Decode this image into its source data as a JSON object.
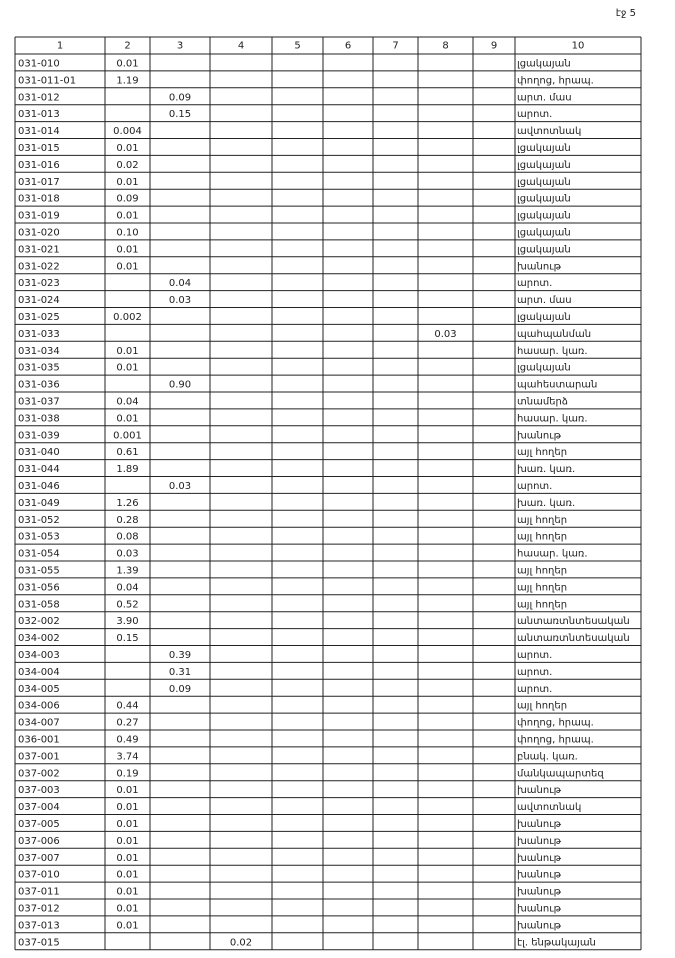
{
  "page_label": "էջ 5",
  "table": {
    "columns": [
      "1",
      "2",
      "3",
      "4",
      "5",
      "6",
      "7",
      "8",
      "9",
      "10"
    ],
    "rows": [
      [
        "031-010",
        "0.01",
        null,
        null,
        null,
        null,
        null,
        null,
        null,
        "լցակայան"
      ],
      [
        "031-011-01",
        "1.19",
        null,
        null,
        null,
        null,
        null,
        null,
        null,
        "փողոց, հրապ."
      ],
      [
        "031-012",
        null,
        "0.09",
        null,
        null,
        null,
        null,
        null,
        null,
        "արտ. մաս"
      ],
      [
        "031-013",
        null,
        "0.15",
        null,
        null,
        null,
        null,
        null,
        null,
        "արոտ."
      ],
      [
        "031-014",
        "0.004",
        null,
        null,
        null,
        null,
        null,
        null,
        null,
        "ավտոտնակ"
      ],
      [
        "031-015",
        "0.01",
        null,
        null,
        null,
        null,
        null,
        null,
        null,
        "լցակայան"
      ],
      [
        "031-016",
        "0.02",
        null,
        null,
        null,
        null,
        null,
        null,
        null,
        "լցակայան"
      ],
      [
        "031-017",
        "0.01",
        null,
        null,
        null,
        null,
        null,
        null,
        null,
        "լցակայան"
      ],
      [
        "031-018",
        "0.09",
        null,
        null,
        null,
        null,
        null,
        null,
        null,
        "լցակայան"
      ],
      [
        "031-019",
        "0.01",
        null,
        null,
        null,
        null,
        null,
        null,
        null,
        "լցակայան"
      ],
      [
        "031-020",
        "0.10",
        null,
        null,
        null,
        null,
        null,
        null,
        null,
        "լցակայան"
      ],
      [
        "031-021",
        "0.01",
        null,
        null,
        null,
        null,
        null,
        null,
        null,
        "լցակայան"
      ],
      [
        "031-022",
        "0.01",
        null,
        null,
        null,
        null,
        null,
        null,
        null,
        "խանութ"
      ],
      [
        "031-023",
        null,
        "0.04",
        null,
        null,
        null,
        null,
        null,
        null,
        "արոտ."
      ],
      [
        "031-024",
        null,
        "0.03",
        null,
        null,
        null,
        null,
        null,
        null,
        "արտ. մաս"
      ],
      [
        "031-025",
        "0.002",
        null,
        null,
        null,
        null,
        null,
        null,
        null,
        "լցակայան"
      ],
      [
        "031-033",
        null,
        null,
        null,
        null,
        null,
        null,
        "0.03",
        null,
        "պահպանման"
      ],
      [
        "031-034",
        "0.01",
        null,
        null,
        null,
        null,
        null,
        null,
        null,
        "հասար. կառ."
      ],
      [
        "031-035",
        "0.01",
        null,
        null,
        null,
        null,
        null,
        null,
        null,
        "լցակայան"
      ],
      [
        "031-036",
        null,
        "0.90",
        null,
        null,
        null,
        null,
        null,
        null,
        "պահեստարան"
      ],
      [
        "031-037",
        "0.04",
        null,
        null,
        null,
        null,
        null,
        null,
        null,
        "տնամերձ"
      ],
      [
        "031-038",
        "0.01",
        null,
        null,
        null,
        null,
        null,
        null,
        null,
        "հասար. կառ."
      ],
      [
        "031-039",
        "0.001",
        null,
        null,
        null,
        null,
        null,
        null,
        null,
        "խանութ"
      ],
      [
        "031-040",
        "0.61",
        null,
        null,
        null,
        null,
        null,
        null,
        null,
        "այլ հողեր"
      ],
      [
        "031-044",
        "1.89",
        null,
        null,
        null,
        null,
        null,
        null,
        null,
        "խառ. կառ."
      ],
      [
        "031-046",
        null,
        "0.03",
        null,
        null,
        null,
        null,
        null,
        null,
        "արոտ."
      ],
      [
        "031-049",
        "1.26",
        null,
        null,
        null,
        null,
        null,
        null,
        null,
        "խառ. կառ."
      ],
      [
        "031-052",
        "0.28",
        null,
        null,
        null,
        null,
        null,
        null,
        null,
        "այլ հողեր"
      ],
      [
        "031-053",
        "0.08",
        null,
        null,
        null,
        null,
        null,
        null,
        null,
        "այլ հողեր"
      ],
      [
        "031-054",
        "0.03",
        null,
        null,
        null,
        null,
        null,
        null,
        null,
        "հասար. կառ."
      ],
      [
        "031-055",
        "1.39",
        null,
        null,
        null,
        null,
        null,
        null,
        null,
        "այլ հողեր"
      ],
      [
        "031-056",
        "0.04",
        null,
        null,
        null,
        null,
        null,
        null,
        null,
        "այլ հողեր"
      ],
      [
        "031-058",
        "0.52",
        null,
        null,
        null,
        null,
        null,
        null,
        null,
        "այլ հողեր"
      ],
      [
        "032-002",
        "3.90",
        null,
        null,
        null,
        null,
        null,
        null,
        null,
        "անտառտնտեսական"
      ],
      [
        "034-002",
        "0.15",
        null,
        null,
        null,
        null,
        null,
        null,
        null,
        "անտառտնտեսական"
      ],
      [
        "034-003",
        null,
        "0.39",
        null,
        null,
        null,
        null,
        null,
        null,
        "արոտ."
      ],
      [
        "034-004",
        null,
        "0.31",
        null,
        null,
        null,
        null,
        null,
        null,
        "արոտ."
      ],
      [
        "034-005",
        null,
        "0.09",
        null,
        null,
        null,
        null,
        null,
        null,
        "արոտ."
      ],
      [
        "034-006",
        "0.44",
        null,
        null,
        null,
        null,
        null,
        null,
        null,
        "այլ հողեր"
      ],
      [
        "034-007",
        "0.27",
        null,
        null,
        null,
        null,
        null,
        null,
        null,
        "փողոց, հրապ."
      ],
      [
        "036-001",
        "0.49",
        null,
        null,
        null,
        null,
        null,
        null,
        null,
        "փողոց, հրապ."
      ],
      [
        "037-001",
        "3.74",
        null,
        null,
        null,
        null,
        null,
        null,
        null,
        "բնակ. կառ."
      ],
      [
        "037-002",
        "0.19",
        null,
        null,
        null,
        null,
        null,
        null,
        null,
        "մանկապարտեզ"
      ],
      [
        "037-003",
        "0.01",
        null,
        null,
        null,
        null,
        null,
        null,
        null,
        "խանութ"
      ],
      [
        "037-004",
        "0.01",
        null,
        null,
        null,
        null,
        null,
        null,
        null,
        "ավտոտնակ"
      ],
      [
        "037-005",
        "0.01",
        null,
        null,
        null,
        null,
        null,
        null,
        null,
        "խանութ"
      ],
      [
        "037-006",
        "0.01",
        null,
        null,
        null,
        null,
        null,
        null,
        null,
        "խանութ"
      ],
      [
        "037-007",
        "0.01",
        null,
        null,
        null,
        null,
        null,
        null,
        null,
        "խանութ"
      ],
      [
        "037-010",
        "0.01",
        null,
        null,
        null,
        null,
        null,
        null,
        null,
        "խանութ"
      ],
      [
        "037-011",
        "0.01",
        null,
        null,
        null,
        null,
        null,
        null,
        null,
        "խանութ"
      ],
      [
        "037-012",
        "0.01",
        null,
        null,
        null,
        null,
        null,
        null,
        null,
        "խանութ"
      ],
      [
        "037-013",
        "0.01",
        null,
        null,
        null,
        null,
        null,
        null,
        null,
        "խանութ"
      ],
      [
        "037-015",
        null,
        null,
        "0.02",
        null,
        null,
        null,
        null,
        null,
        "էլ. ենթակայան"
      ]
    ]
  }
}
